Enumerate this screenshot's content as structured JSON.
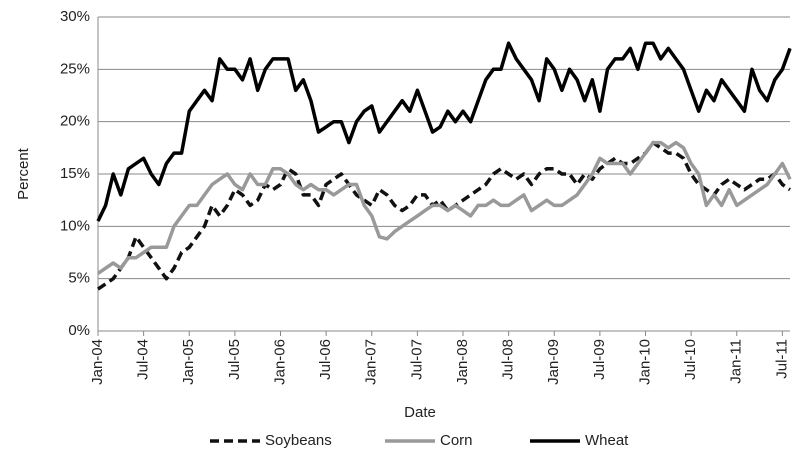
{
  "chart_data": {
    "type": "line",
    "x": [
      "Jan-04",
      "Feb-04",
      "Mar-04",
      "Apr-04",
      "May-04",
      "Jun-04",
      "Jul-04",
      "Aug-04",
      "Sep-04",
      "Oct-04",
      "Nov-04",
      "Dec-04",
      "Jan-05",
      "Feb-05",
      "Mar-05",
      "Apr-05",
      "May-05",
      "Jun-05",
      "Jul-05",
      "Aug-05",
      "Sep-05",
      "Oct-05",
      "Nov-05",
      "Dec-05",
      "Jan-06",
      "Feb-06",
      "Mar-06",
      "Apr-06",
      "May-06",
      "Jun-06",
      "Jul-06",
      "Aug-06",
      "Sep-06",
      "Oct-06",
      "Nov-06",
      "Dec-06",
      "Jan-07",
      "Feb-07",
      "Mar-07",
      "Apr-07",
      "May-07",
      "Jun-07",
      "Jul-07",
      "Aug-07",
      "Sep-07",
      "Oct-07",
      "Nov-07",
      "Dec-07",
      "Jan-08",
      "Feb-08",
      "Mar-08",
      "Apr-08",
      "May-08",
      "Jun-08",
      "Jul-08",
      "Aug-08",
      "Sep-08",
      "Oct-08",
      "Nov-08",
      "Dec-08",
      "Jan-09",
      "Feb-09",
      "Mar-09",
      "Apr-09",
      "May-09",
      "Jun-09",
      "Jul-09",
      "Aug-09",
      "Sep-09",
      "Oct-09",
      "Nov-09",
      "Dec-09",
      "Jan-10",
      "Feb-10",
      "Mar-10",
      "Apr-10",
      "May-10",
      "Jun-10",
      "Jul-10",
      "Aug-10",
      "Sep-10",
      "Oct-10",
      "Nov-10",
      "Dec-10",
      "Jan-11",
      "Feb-11",
      "Mar-11",
      "Apr-11",
      "May-11",
      "Jun-11",
      "Jul-11",
      "Aug-11"
    ],
    "xticks": [
      "Jan-04",
      "Jul-04",
      "Jan-05",
      "Jul-05",
      "Jan-06",
      "Jul-06",
      "Jan-07",
      "Jul-07",
      "Jan-08",
      "Jul-08",
      "Jan-09",
      "Jul-09",
      "Jan-10",
      "Jul-10",
      "Jan-11",
      "Jul-11"
    ],
    "xlabel": "Date",
    "ylabel": "Percent",
    "ylim": [
      0,
      30
    ],
    "yticks": [
      {
        "value": 0,
        "label": "0%"
      },
      {
        "value": 5,
        "label": "5%"
      },
      {
        "value": 10,
        "label": "10%"
      },
      {
        "value": 15,
        "label": "15%"
      },
      {
        "value": 20,
        "label": "20%"
      },
      {
        "value": 25,
        "label": "25%"
      },
      {
        "value": 30,
        "label": "30%"
      }
    ],
    "grid": true,
    "legend": "bottom",
    "series": [
      {
        "name": "Soybeans",
        "color": "#111111",
        "dash": true,
        "values": [
          4,
          4.5,
          5,
          6,
          7,
          9,
          8,
          7,
          6,
          5,
          6,
          7.5,
          8,
          9,
          10,
          12,
          11,
          12,
          13.5,
          13,
          12,
          12.5,
          14,
          13.5,
          14,
          15.5,
          15,
          13,
          13,
          12,
          14,
          14.5,
          15,
          14,
          13,
          12.5,
          12,
          13.5,
          13,
          12,
          11.5,
          12,
          13,
          13,
          12,
          12.5,
          11.5,
          12,
          12.5,
          13,
          13.5,
          14,
          15,
          15.5,
          15,
          14.5,
          15,
          14,
          15,
          15.5,
          15.5,
          15,
          15,
          14,
          15,
          14.5,
          15.5,
          16,
          16.5,
          16,
          16,
          16.5,
          17,
          18,
          17.5,
          17,
          17,
          16.5,
          15,
          14,
          13.5,
          13,
          14,
          14.5,
          14,
          13.5,
          14,
          14.5,
          14.5,
          15,
          14,
          13.5
        ]
      },
      {
        "name": "Corn",
        "color": "#999999",
        "dash": false,
        "values": [
          5.5,
          6,
          6.5,
          6,
          7,
          7,
          7.5,
          8,
          8,
          8,
          10,
          11,
          12,
          12,
          13,
          14,
          14.5,
          15,
          14,
          13.5,
          15,
          14,
          14,
          15.5,
          15.5,
          15,
          14,
          13.5,
          14,
          13.5,
          13.5,
          13,
          13.5,
          14,
          14,
          12,
          11,
          9,
          8.8,
          9.5,
          10,
          10.5,
          11,
          11.5,
          12,
          12,
          11.5,
          12,
          11.5,
          11,
          12,
          12,
          12.5,
          12,
          12,
          12.5,
          13,
          11.5,
          12,
          12.5,
          12,
          12,
          12.5,
          13,
          14,
          15,
          16.5,
          16,
          16,
          16,
          15,
          16,
          17,
          18,
          18,
          17.5,
          18,
          17.5,
          16,
          15,
          12,
          13,
          12,
          13.5,
          12,
          12.5,
          13,
          13.5,
          14,
          15,
          16,
          14.5
        ]
      },
      {
        "name": "Wheat",
        "color": "#000000",
        "dash": false,
        "values": [
          10.5,
          12,
          15,
          13,
          15.5,
          16,
          16.5,
          15,
          14,
          16,
          17,
          17,
          21,
          22,
          23,
          22,
          26,
          25,
          25,
          24,
          26,
          23,
          25,
          26,
          26,
          26,
          23,
          24,
          22,
          19,
          19.5,
          20,
          20,
          18,
          20,
          21,
          21.5,
          19,
          20,
          21,
          22,
          21,
          23,
          21,
          19,
          19.5,
          21,
          20,
          21,
          20,
          22,
          24,
          25,
          25,
          27.5,
          26,
          25,
          24,
          22,
          26,
          25,
          23,
          25,
          24,
          22,
          24,
          21,
          25,
          26,
          26,
          27,
          25,
          27.5,
          27.5,
          26,
          27,
          26,
          25,
          23,
          21,
          23,
          22,
          24,
          23,
          22,
          21,
          25,
          23,
          22,
          24,
          25,
          27
        ]
      }
    ]
  }
}
